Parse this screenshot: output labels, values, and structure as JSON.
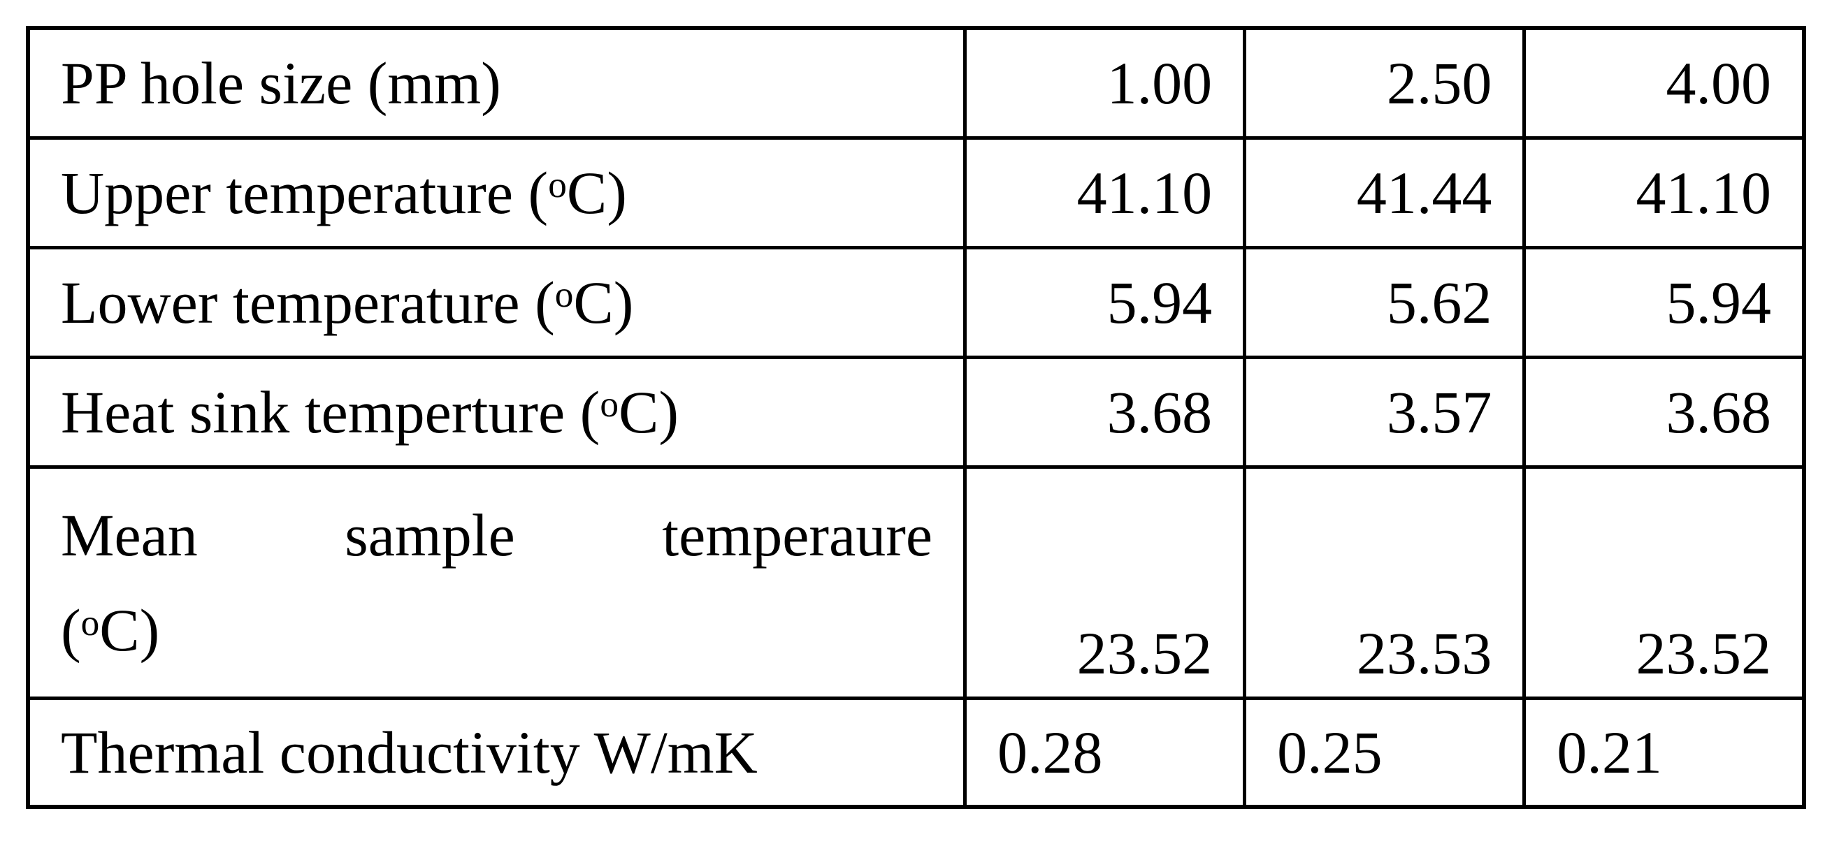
{
  "table": {
    "rows": [
      {
        "label": "PP hole size (mm)",
        "values": [
          "1.00",
          "2.50",
          "4.00"
        ]
      },
      {
        "label_prefix": "Upper temperature (",
        "label_sup": "o",
        "label_suffix": "C)",
        "values": [
          "41.10",
          "41.44",
          "41.10"
        ]
      },
      {
        "label_prefix": "Lower temperature (",
        "label_sup": "o",
        "label_suffix": "C)",
        "values": [
          "5.94",
          "5.62",
          "5.94"
        ]
      },
      {
        "label_prefix": "Heat sink temperture (",
        "label_sup": "o",
        "label_suffix": "C)",
        "values": [
          "3.68",
          "3.57",
          "3.68"
        ]
      },
      {
        "label_words": [
          "Mean",
          "sample",
          "temperaure"
        ],
        "label_line2_prefix": "(",
        "label_sup": "o",
        "label_suffix": "C)",
        "values": [
          "23.52",
          "23.53",
          "23.52"
        ]
      },
      {
        "label": "Thermal conductivity W/mK",
        "values": [
          "0.28",
          "0.25",
          "0.21"
        ]
      }
    ]
  }
}
